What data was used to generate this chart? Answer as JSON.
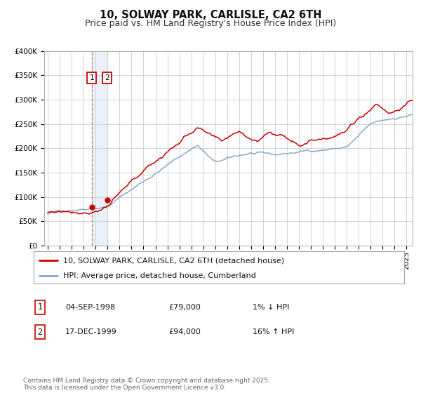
{
  "title": "10, SOLWAY PARK, CARLISLE, CA2 6TH",
  "subtitle": "Price paid vs. HM Land Registry's House Price Index (HPI)",
  "ylim": [
    0,
    400000
  ],
  "yticks": [
    0,
    50000,
    100000,
    150000,
    200000,
    250000,
    300000,
    350000,
    400000
  ],
  "ytick_labels": [
    "£0",
    "£50K",
    "£100K",
    "£150K",
    "£200K",
    "£250K",
    "£300K",
    "£350K",
    "£400K"
  ],
  "xlim_start": 1994.7,
  "xlim_end": 2025.5,
  "price_paid_color": "#cc0000",
  "hpi_color": "#88aacc",
  "background_color": "#ffffff",
  "grid_color": "#cccccc",
  "transaction1_date": 1998.674,
  "transaction1_price": 79000,
  "transaction2_date": 1999.959,
  "transaction2_price": 94000,
  "shade_color": "#c8d8ec",
  "shade_alpha": 0.35,
  "vline_color": "#cc6666",
  "legend_line1": "10, SOLWAY PARK, CARLISLE, CA2 6TH (detached house)",
  "legend_line2": "HPI: Average price, detached house, Cumberland",
  "table_row1": [
    "1",
    "04-SEP-1998",
    "£79,000",
    "1% ↓ HPI"
  ],
  "table_row2": [
    "2",
    "17-DEC-1999",
    "£94,000",
    "16% ↑ HPI"
  ],
  "footnote": "Contains HM Land Registry data © Crown copyright and database right 2025.\nThis data is licensed under the Open Government Licence v3.0.",
  "title_fontsize": 10.5,
  "subtitle_fontsize": 9,
  "tick_fontsize": 7.5,
  "legend_fontsize": 8,
  "table_fontsize": 8,
  "footnote_fontsize": 6.5
}
